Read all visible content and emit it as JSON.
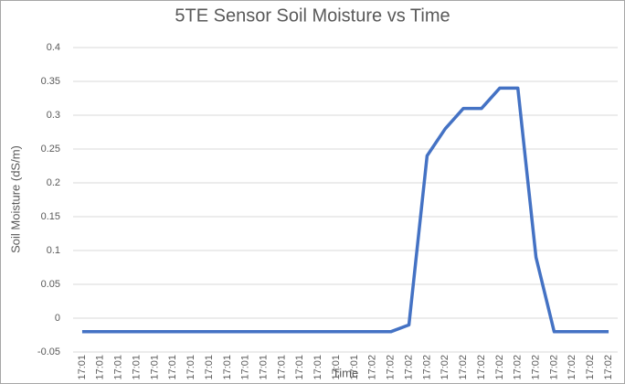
{
  "chart_data": {
    "type": "line",
    "title": "5TE Sensor Soil Moisture vs Time",
    "x_label": "Time",
    "y_label": "Soil Moisture (dS/m)",
    "categories": [
      "17:01",
      "17:01",
      "17:01",
      "17:01",
      "17:01",
      "17:01",
      "17:01",
      "17:01",
      "17:01",
      "17:01",
      "17:01",
      "17:01",
      "17:01",
      "17:01",
      "17:01",
      "17:01",
      "17:02",
      "17:02",
      "17:02",
      "17:02",
      "17:02",
      "17:02",
      "17:02",
      "17:02",
      "17:02",
      "17:02",
      "17:02",
      "17:02",
      "17:02",
      "17:02"
    ],
    "series": [
      {
        "name": "Soil Moisture",
        "color": "#4472c4",
        "values": [
          -0.02,
          -0.02,
          -0.02,
          -0.02,
          -0.02,
          -0.02,
          -0.02,
          -0.02,
          -0.02,
          -0.02,
          -0.02,
          -0.02,
          -0.02,
          -0.02,
          -0.02,
          -0.02,
          -0.02,
          -0.02,
          -0.01,
          0.24,
          0.28,
          0.31,
          0.31,
          0.34,
          0.34,
          0.09,
          -0.02,
          -0.02,
          -0.02,
          -0.02
        ]
      }
    ],
    "ylim": [
      -0.05,
      0.4
    ],
    "yticks": [
      -0.05,
      0,
      0.05,
      0.1,
      0.15,
      0.2,
      0.25,
      0.3,
      0.35,
      0.4
    ],
    "grid": true
  }
}
